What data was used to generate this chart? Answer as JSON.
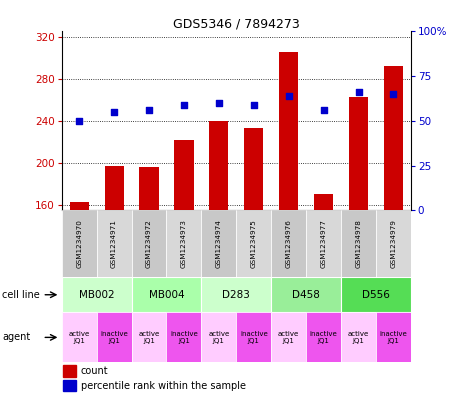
{
  "title": "GDS5346 / 7894273",
  "samples": [
    "GSM1234970",
    "GSM1234971",
    "GSM1234972",
    "GSM1234973",
    "GSM1234974",
    "GSM1234975",
    "GSM1234976",
    "GSM1234977",
    "GSM1234978",
    "GSM1234979"
  ],
  "counts": [
    163,
    197,
    196,
    222,
    240,
    233,
    305,
    170,
    263,
    292
  ],
  "percentiles": [
    50,
    55,
    56,
    59,
    60,
    59,
    64,
    56,
    66,
    65
  ],
  "cell_lines": [
    {
      "label": "MB002",
      "cols": [
        0,
        1
      ],
      "color": "#ccffcc"
    },
    {
      "label": "MB004",
      "cols": [
        2,
        3
      ],
      "color": "#aaffaa"
    },
    {
      "label": "D283",
      "cols": [
        4,
        5
      ],
      "color": "#ccffcc"
    },
    {
      "label": "D458",
      "cols": [
        6,
        7
      ],
      "color": "#99ee99"
    },
    {
      "label": "D556",
      "cols": [
        8,
        9
      ],
      "color": "#55dd55"
    }
  ],
  "agent_colors_active": "#ffccff",
  "agent_colors_inactive": "#ee55ee",
  "ylim_left": [
    155,
    325
  ],
  "yticks_left": [
    160,
    200,
    240,
    280,
    320
  ],
  "ylim_right": [
    0,
    100
  ],
  "yticks_right": [
    0,
    25,
    50,
    75,
    100
  ],
  "bar_color": "#cc0000",
  "dot_color": "#0000cc",
  "bar_width": 0.55,
  "grid_color": "#000000",
  "background_color": "#ffffff",
  "left_label_color": "#cc0000",
  "right_label_color": "#0000cc",
  "sample_col_colors": [
    "#c8c8c8",
    "#d8d8d8"
  ]
}
